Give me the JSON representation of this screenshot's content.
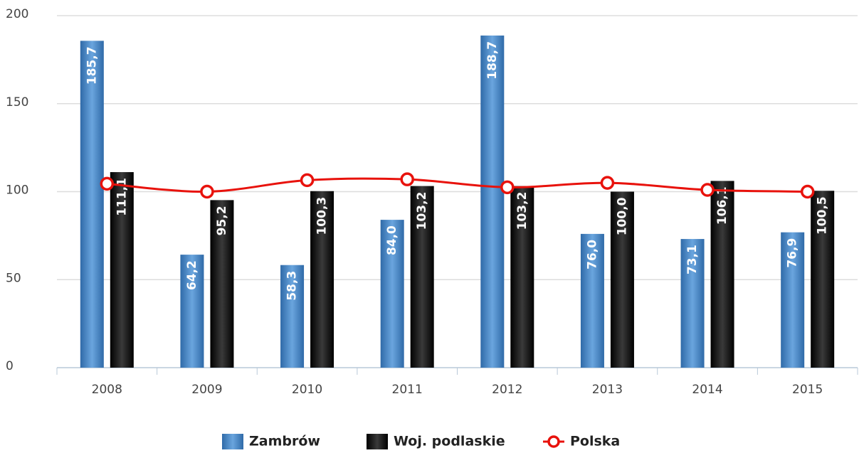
{
  "chart_data": {
    "type": "bar",
    "categories": [
      "2008",
      "2009",
      "2010",
      "2011",
      "2012",
      "2013",
      "2014",
      "2015"
    ],
    "series": [
      {
        "name": "Zambrów",
        "type": "bar",
        "color": "#4a86c5",
        "values": [
          185.7,
          64.2,
          58.3,
          84.0,
          188.7,
          76.0,
          73.1,
          76.9
        ],
        "value_labels": [
          "185,7",
          "64,2",
          "58,3",
          "84,0",
          "188,7",
          "76,0",
          "73,1",
          "76,9"
        ]
      },
      {
        "name": "Woj. podlaskie",
        "type": "bar",
        "color": "#111111",
        "values": [
          111.1,
          95.2,
          100.3,
          103.2,
          103.2,
          100.0,
          106.1,
          100.5
        ],
        "value_labels": [
          "111,1",
          "95,2",
          "100,3",
          "103,2",
          "103,2",
          "100,0",
          "106,1",
          "100,5"
        ]
      },
      {
        "name": "Polska",
        "type": "line",
        "color": "#e8120c",
        "values": [
          104.5,
          100.0,
          106.5,
          107.0,
          102.5,
          105.0,
          101.0,
          100.0
        ]
      }
    ],
    "ylim": [
      0,
      200
    ],
    "yticks": [
      0,
      50,
      100,
      150,
      200
    ],
    "grid": true,
    "legend": "bottom"
  }
}
